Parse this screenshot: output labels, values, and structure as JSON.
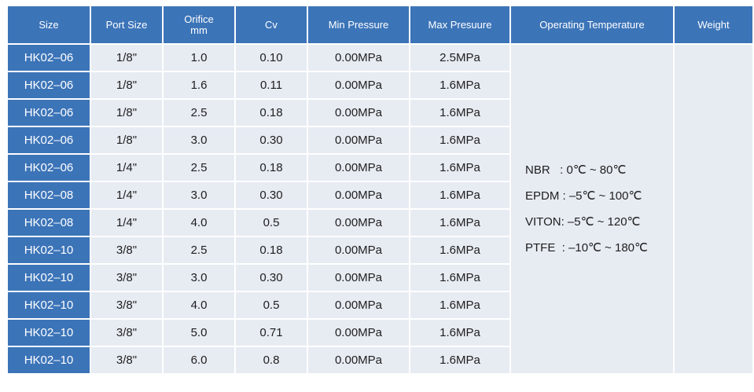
{
  "headers": {
    "size": "Size",
    "port_size": "Port Size",
    "orifice": "Orifice",
    "orifice_unit": "mm",
    "cv": "Cv",
    "min_pressure": "Min Pressure",
    "max_pressure": "Max Presuure",
    "operating_temperature": "Operating Temperature",
    "weight": "Weight"
  },
  "rows": [
    {
      "size": "HK02–06",
      "port": "1/8\"",
      "orifice": "1.0",
      "cv": "0.10",
      "min": "0.00MPa",
      "max": "2.5MPa"
    },
    {
      "size": "HK02–06",
      "port": "1/8\"",
      "orifice": "1.6",
      "cv": "0.11",
      "min": "0.00MPa",
      "max": "1.6MPa"
    },
    {
      "size": "HK02–06",
      "port": "1/8\"",
      "orifice": "2.5",
      "cv": "0.18",
      "min": "0.00MPa",
      "max": "1.6MPa"
    },
    {
      "size": "HK02–06",
      "port": "1/8\"",
      "orifice": "3.0",
      "cv": "0.30",
      "min": "0.00MPa",
      "max": "1.6MPa"
    },
    {
      "size": "HK02–06",
      "port": "1/4\"",
      "orifice": "2.5",
      "cv": "0.18",
      "min": "0.00MPa",
      "max": "1.6MPa"
    },
    {
      "size": "HK02–08",
      "port": "1/4\"",
      "orifice": "3.0",
      "cv": "0.30",
      "min": "0.00MPa",
      "max": "1.6MPa"
    },
    {
      "size": "HK02–08",
      "port": "1/4\"",
      "orifice": "4.0",
      "cv": "0.5",
      "min": "0.00MPa",
      "max": "1.6MPa"
    },
    {
      "size": "HK02–10",
      "port": "3/8\"",
      "orifice": "2.5",
      "cv": "0.18",
      "min": "0.00MPa",
      "max": "1.6MPa"
    },
    {
      "size": "HK02–10",
      "port": "3/8\"",
      "orifice": "3.0",
      "cv": "0.30",
      "min": "0.00MPa",
      "max": "1.6MPa"
    },
    {
      "size": "HK02–10",
      "port": "3/8\"",
      "orifice": "4.0",
      "cv": "0.5",
      "min": "0.00MPa",
      "max": "1.6MPa"
    },
    {
      "size": "HK02–10",
      "port": "3/8\"",
      "orifice": "5.0",
      "cv": "0.71",
      "min": "0.00MPa",
      "max": "1.6MPa"
    },
    {
      "size": "HK02–10",
      "port": "3/8\"",
      "orifice": "6.0",
      "cv": "0.8",
      "min": "0.00MPa",
      "max": "1.6MPa"
    }
  ],
  "temperature": [
    "NBR   : 0℃ ~ 80℃",
    "EPDM : –5℃ ~ 100℃",
    "VITON: –5℃ ~ 120℃",
    "PTFE  : –10℃ ~ 180℃"
  ],
  "colors": {
    "header_bg": "#3c74b8",
    "cell_bg": "#e7ebf2",
    "header_text": "#ffffff"
  }
}
